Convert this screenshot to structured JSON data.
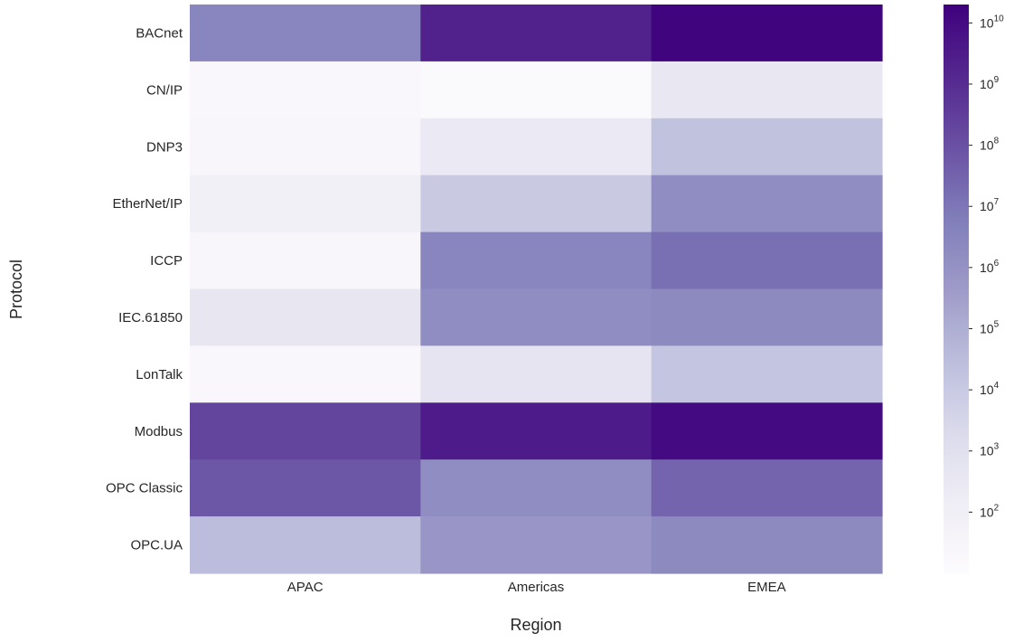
{
  "chart_data": {
    "type": "heatmap",
    "title": "",
    "xlabel": "Region",
    "ylabel": "Protocol",
    "x_categories": [
      "APAC",
      "Americas",
      "EMEA"
    ],
    "y_categories": [
      "BACnet",
      "CN/IP",
      "DNP3",
      "EtherNet/IP",
      "ICCP",
      "IEC.61850",
      "LonTalk",
      "Modbus",
      "OPC Classic",
      "OPC.UA"
    ],
    "values": [
      [
        3000000,
        2000000000,
        15000000000
      ],
      [
        20,
        15,
        300
      ],
      [
        25,
        250,
        20000
      ],
      [
        80,
        10000,
        1500000
      ],
      [
        25,
        3000000,
        15000000
      ],
      [
        400,
        1500000,
        2000000
      ],
      [
        20,
        500,
        15000
      ],
      [
        200000000,
        3000000000,
        10000000000
      ],
      [
        70000000,
        1500000,
        30000000
      ],
      [
        30000,
        700000,
        2000000
      ]
    ],
    "color_scale": "log",
    "colormap": "Purples",
    "colorbar": {
      "min": 10,
      "max": 20000000000,
      "tick_base": "10",
      "tick_exponents": [
        "2",
        "3",
        "4",
        "5",
        "6",
        "7",
        "8",
        "9",
        "10"
      ],
      "tick_values": [
        100,
        1000,
        10000,
        100000,
        1000000,
        10000000,
        100000000,
        1000000000,
        10000000000
      ]
    },
    "grid": false,
    "legend": "colorbar right"
  }
}
